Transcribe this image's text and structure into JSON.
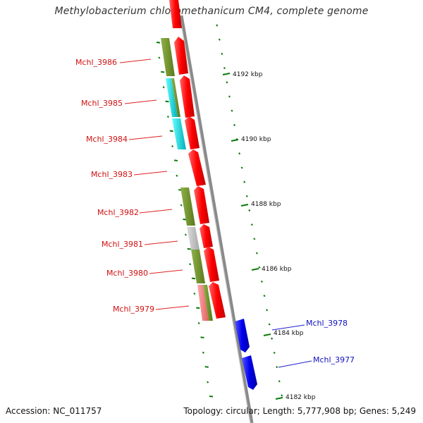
{
  "title": "Methylobacterium chloromethanicum CM4, complete genome",
  "accession_text": "Accession: NC_011757",
  "topology_text": "Topology: circular; Length: 5,777,908 bp; Genes: 5,249",
  "scale_labels": [
    "4192 kbp",
    "4190 kbp",
    "4188 kbp",
    "4186 kbp",
    "4184 kbp",
    "4182 kbp"
  ],
  "gene_labels_left": [
    "Mchl_3986",
    "Mchl_3985",
    "Mchl_3984",
    "Mchl_3983",
    "Mchl_3982",
    "Mchl_3981",
    "Mchl_3980",
    "Mchl_3979"
  ],
  "gene_labels_right": [
    "Mchl_3978",
    "Mchl_3977"
  ],
  "colors": {
    "forward_gene": "#ff0000",
    "reverse_gene": "#0000ee",
    "cog_olive": "#6b8e23",
    "cog_cyan": "#00ced1",
    "cog_gray": "#c0c0c0",
    "cog_pink": "#f08080",
    "scale_tick": "#0a7a0a",
    "backbone": "#8a8a8a"
  }
}
